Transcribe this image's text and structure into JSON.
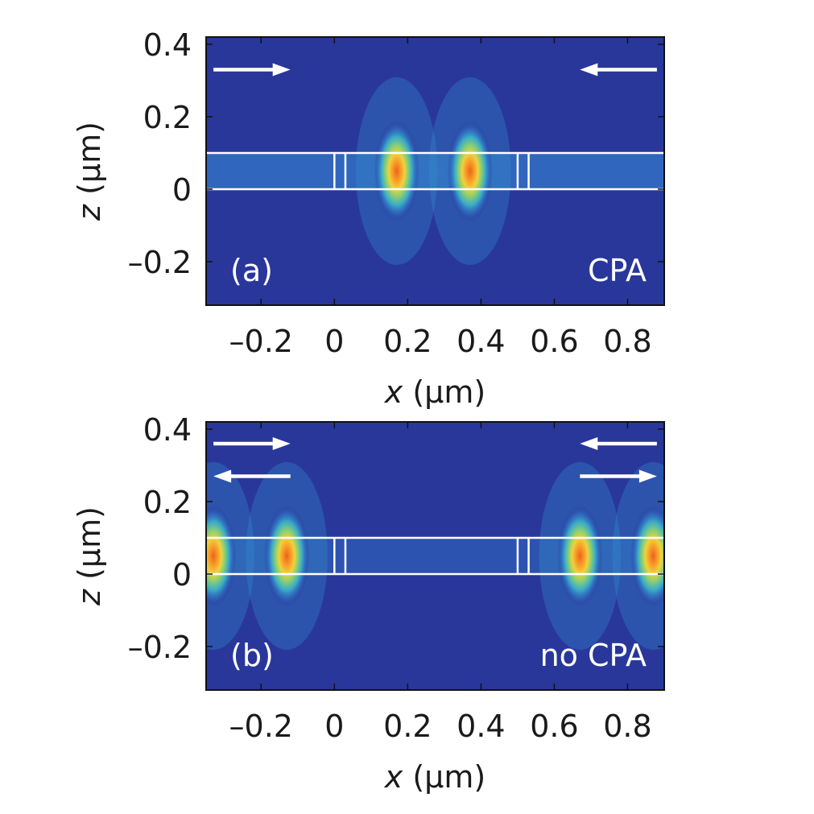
{
  "chart_data": [
    {
      "type": "heatmap",
      "panel_label": "(a)",
      "annotation": "CPA",
      "xlabel": {
        "var": "x",
        "unit": " (µm)"
      },
      "ylabel": {
        "var": "z",
        "unit": " (µm)"
      },
      "xlim": [
        -0.35,
        0.9
      ],
      "ylim": [
        -0.32,
        0.42
      ],
      "xticks": [
        {
          "value": -0.2,
          "label": "–0.2"
        },
        {
          "value": 0,
          "label": "0"
        },
        {
          "value": 0.2,
          "label": "0.2"
        },
        {
          "value": 0.4,
          "label": "0.4"
        },
        {
          "value": 0.6,
          "label": "0.6"
        },
        {
          "value": 0.8,
          "label": "0.8"
        }
      ],
      "yticks": [
        {
          "value": -0.2,
          "label": "–0.2"
        },
        {
          "value": 0,
          "label": "0"
        },
        {
          "value": 0.2,
          "label": "0.2"
        },
        {
          "value": 0.4,
          "label": "0.4"
        }
      ],
      "waveguide": {
        "x_start": -0.35,
        "x_end": 0.9,
        "z_bottom": 0,
        "z_top": 0.1
      },
      "grating_lines_x": [
        0.0,
        0.03,
        0.5,
        0.53
      ],
      "field_peaks": [
        {
          "x": 0.17,
          "z": 0.05,
          "intensity": 1.0
        },
        {
          "x": 0.37,
          "z": 0.05,
          "intensity": 1.0
        }
      ],
      "arrows": [
        {
          "direction": "right",
          "x_from": -0.33,
          "x_to": -0.12,
          "z": 0.33
        },
        {
          "direction": "left",
          "x_from": 0.88,
          "x_to": 0.67,
          "z": 0.33
        }
      ]
    },
    {
      "type": "heatmap",
      "panel_label": "(b)",
      "annotation": "no CPA",
      "xlabel": {
        "var": "x",
        "unit": " (µm)"
      },
      "ylabel": {
        "var": "z",
        "unit": " (µm)"
      },
      "xlim": [
        -0.35,
        0.9
      ],
      "ylim": [
        -0.32,
        0.42
      ],
      "xticks": [
        {
          "value": -0.2,
          "label": "–0.2"
        },
        {
          "value": 0,
          "label": "0"
        },
        {
          "value": 0.2,
          "label": "0.2"
        },
        {
          "value": 0.4,
          "label": "0.4"
        },
        {
          "value": 0.6,
          "label": "0.6"
        },
        {
          "value": 0.8,
          "label": "0.8"
        }
      ],
      "yticks": [
        {
          "value": -0.2,
          "label": "–0.2"
        },
        {
          "value": 0,
          "label": "0"
        },
        {
          "value": 0.2,
          "label": "0.2"
        },
        {
          "value": 0.4,
          "label": "0.4"
        }
      ],
      "waveguide": {
        "x_start": -0.35,
        "x_end": 0.9,
        "z_bottom": 0,
        "z_top": 0.1
      },
      "grating_lines_x": [
        0.0,
        0.03,
        0.5,
        0.53
      ],
      "field_peaks": [
        {
          "x": -0.33,
          "z": 0.05,
          "intensity": 1.0
        },
        {
          "x": -0.13,
          "z": 0.05,
          "intensity": 1.0
        },
        {
          "x": 0.67,
          "z": 0.05,
          "intensity": 1.0
        },
        {
          "x": 0.87,
          "z": 0.05,
          "intensity": 1.0
        }
      ],
      "arrows": [
        {
          "direction": "right",
          "x_from": -0.33,
          "x_to": -0.12,
          "z": 0.36
        },
        {
          "direction": "left",
          "x_from": -0.12,
          "x_to": -0.33,
          "z": 0.27
        },
        {
          "direction": "left",
          "x_from": 0.88,
          "x_to": 0.67,
          "z": 0.36
        },
        {
          "direction": "right",
          "x_from": 0.67,
          "x_to": 0.88,
          "z": 0.27
        }
      ]
    }
  ]
}
